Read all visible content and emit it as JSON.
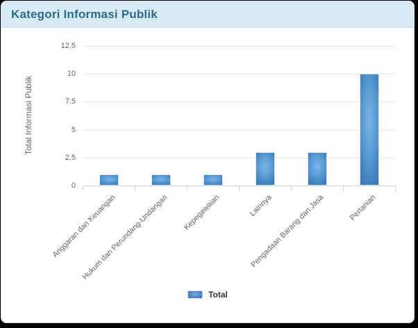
{
  "header": {
    "title": "Kategori Informasi Publik",
    "background_color": "#d8eaf5",
    "title_color": "#2a6b8f"
  },
  "chart_data": {
    "type": "bar",
    "title": "Kategori Informasi Publik",
    "categories": [
      "Anggaran dan Keuangan",
      "Hukum dan Perundang-Undangan",
      "Kepegawaian",
      "Lainnya",
      "Pengadaan Barang dan Jasa",
      "Pertanian"
    ],
    "series": [
      {
        "name": "Total",
        "values": [
          1,
          1,
          1,
          3,
          3,
          10
        ]
      }
    ],
    "xlabel": "",
    "ylabel": "Total Informasi Publik",
    "yticks": [
      "0",
      "2.5",
      "5",
      "7.5",
      "10",
      "12.5"
    ],
    "ylim": [
      0,
      12.5
    ],
    "grid": true,
    "legend_position": "bottom",
    "colors": {
      "bar_light": "#74abe0",
      "bar_dark": "#2f6ba8",
      "bar_border": "#d6e4f2",
      "gridline": "#e6e6e6",
      "axis_line": "#ccd6eb",
      "axis_label_text": "#666666",
      "legend_text": "#333333"
    }
  },
  "legend": {
    "label": "Total"
  }
}
